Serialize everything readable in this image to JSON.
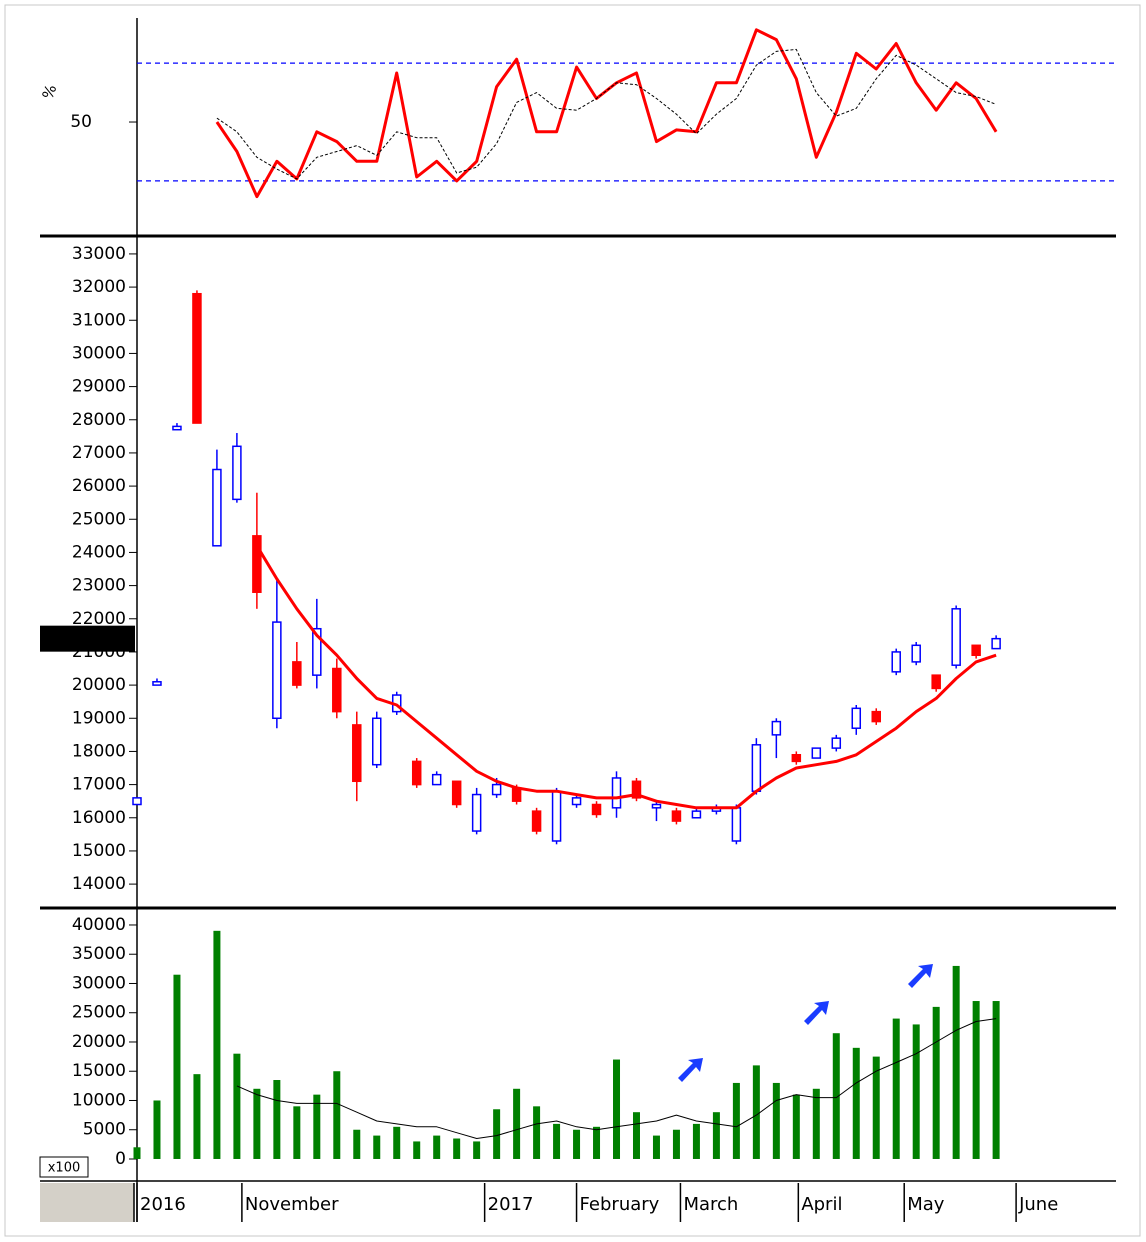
{
  "chart_data": [
    {
      "type": "line",
      "y_label": "%",
      "xlim": [
        0,
        49
      ],
      "ylim": [
        -4,
        103
      ],
      "yticks": [
        50
      ],
      "levels": [
        20,
        80
      ],
      "level_color": "#0000ff",
      "series": [
        {
          "color": "#ff0000",
          "style": "solid",
          "values": [
            null,
            null,
            null,
            null,
            50,
            35,
            12,
            30,
            21,
            45,
            40,
            30,
            30,
            75,
            22,
            30,
            20,
            30,
            68,
            82,
            45,
            45,
            78,
            62,
            70,
            75,
            40,
            46,
            45,
            70,
            70,
            97,
            92,
            72,
            32,
            55,
            85,
            77,
            90,
            70,
            56,
            70,
            62,
            45
          ]
        },
        {
          "color": "#000000",
          "style": "dashed",
          "values": [
            null,
            null,
            null,
            null,
            52,
            45,
            32,
            26,
            21,
            32,
            35,
            38,
            33,
            45,
            42,
            42,
            24,
            27,
            39,
            60,
            65,
            57,
            56,
            62,
            70,
            69,
            62,
            54,
            44,
            54,
            62,
            79,
            86,
            87,
            65,
            53,
            57,
            72,
            84,
            79,
            72,
            65,
            63,
            59
          ]
        }
      ]
    },
    {
      "type": "candlestick",
      "xlim": [
        0,
        49
      ],
      "ylim": [
        13370,
        33480
      ],
      "yticks": [
        14000,
        15000,
        16000,
        17000,
        18000,
        19000,
        20000,
        21000,
        22000,
        23000,
        24000,
        25000,
        26000,
        27000,
        28000,
        29000,
        30000,
        31000,
        32000,
        33000
      ],
      "up_color": "#0000ff",
      "down_color": "#ff0000",
      "open": [
        16400,
        20000,
        27700,
        31800,
        24200,
        25600,
        24500,
        19000,
        20700,
        20300,
        20500,
        18800,
        17600,
        19200,
        17700,
        17000,
        17100,
        15600,
        16700,
        16900,
        16200,
        15300,
        16400,
        16400,
        16300,
        17100,
        16300,
        16200,
        16000,
        16200,
        15300,
        16800,
        18500,
        17900,
        17800,
        18100,
        18700,
        19200,
        20400,
        20700,
        20300,
        20600,
        21200,
        21100
      ],
      "high": [
        16600,
        20200,
        27900,
        31900,
        27100,
        27600,
        25800,
        23200,
        21300,
        22600,
        20800,
        19200,
        19200,
        19800,
        17800,
        17400,
        17100,
        16900,
        17200,
        17000,
        16300,
        16900,
        16700,
        16500,
        17400,
        17200,
        16500,
        16300,
        16300,
        16400,
        16400,
        18400,
        19000,
        18000,
        18100,
        18500,
        19400,
        19300,
        21100,
        21300,
        20300,
        22400,
        21200,
        21500
      ],
      "low": [
        16400,
        20000,
        27700,
        27900,
        24200,
        25500,
        22300,
        18700,
        19900,
        19900,
        19000,
        16500,
        17500,
        19100,
        16900,
        17000,
        16300,
        15500,
        16600,
        16400,
        15500,
        15200,
        16300,
        16000,
        16000,
        16500,
        15900,
        15800,
        16000,
        16100,
        15200,
        16700,
        17800,
        17600,
        17800,
        18000,
        18500,
        18800,
        20300,
        20600,
        19800,
        20500,
        20800,
        21100
      ],
      "close": [
        16600,
        20100,
        27800,
        27900,
        26500,
        27200,
        22800,
        21900,
        20000,
        21700,
        19200,
        17100,
        19000,
        19700,
        17000,
        17300,
        16400,
        16700,
        17000,
        16500,
        15600,
        16800,
        16600,
        16100,
        17200,
        16600,
        16400,
        15900,
        16200,
        16300,
        16300,
        18200,
        18900,
        17700,
        18100,
        18400,
        19300,
        18900,
        21000,
        21200,
        19900,
        22300,
        20900,
        21400
      ],
      "series": [
        {
          "color": "#ff0000",
          "style": "solid",
          "values": [
            null,
            null,
            null,
            null,
            null,
            null,
            24200,
            23200,
            22300,
            21500,
            20900,
            20200,
            19600,
            19400,
            18900,
            18400,
            17900,
            17400,
            17100,
            16900,
            16800,
            16800,
            16700,
            16600,
            16600,
            16700,
            16500,
            16400,
            16300,
            16300,
            16300,
            16800,
            17200,
            17500,
            17600,
            17700,
            17900,
            18300,
            18700,
            19200,
            19600,
            20200,
            20700,
            20900
          ]
        }
      ],
      "last_price": {
        "value": 21400,
        "label": "21400.00"
      }
    },
    {
      "type": "bar",
      "xlim": [
        0,
        49
      ],
      "ylim": [
        -3250,
        42560
      ],
      "yticks": [
        0,
        5000,
        10000,
        15000,
        20000,
        25000,
        30000,
        35000,
        40000
      ],
      "unit_label": "x100",
      "color": "#008000",
      "values": [
        2000,
        10000,
        31500,
        14500,
        39000,
        18000,
        12000,
        13500,
        9000,
        11000,
        15000,
        5000,
        4000,
        5500,
        3000,
        4000,
        3500,
        3000,
        8500,
        12000,
        9000,
        6000,
        5000,
        5500,
        17000,
        8000,
        4000,
        5000,
        6000,
        8000,
        13000,
        16000,
        13000,
        11000,
        12000,
        21500,
        19000,
        17500,
        24000,
        23000,
        26000,
        33000,
        27000,
        27000
      ],
      "series": [
        {
          "color": "#000000",
          "style": "solid",
          "values": [
            null,
            null,
            null,
            null,
            null,
            12500,
            11000,
            10000,
            9500,
            9500,
            9500,
            8000,
            6500,
            6000,
            5500,
            5500,
            4500,
            3500,
            4000,
            5000,
            6000,
            6500,
            5500,
            5000,
            5500,
            6000,
            6500,
            7500,
            6500,
            6000,
            5500,
            7500,
            10000,
            11000,
            10500,
            10500,
            13000,
            15000,
            16500,
            18000,
            20000,
            22000,
            23500,
            24000
          ]
        }
      ],
      "xticks": [
        {
          "value": 0,
          "label": "2016"
        },
        {
          "value": 5.25,
          "label": "November"
        },
        {
          "value": 17.4,
          "label": "2017"
        },
        {
          "value": 22,
          "label": "February"
        },
        {
          "value": 27.2,
          "label": "March"
        },
        {
          "value": 33.1,
          "label": "April"
        },
        {
          "value": 38.4,
          "label": "May"
        },
        {
          "value": 44,
          "label": "June"
        }
      ]
    }
  ]
}
